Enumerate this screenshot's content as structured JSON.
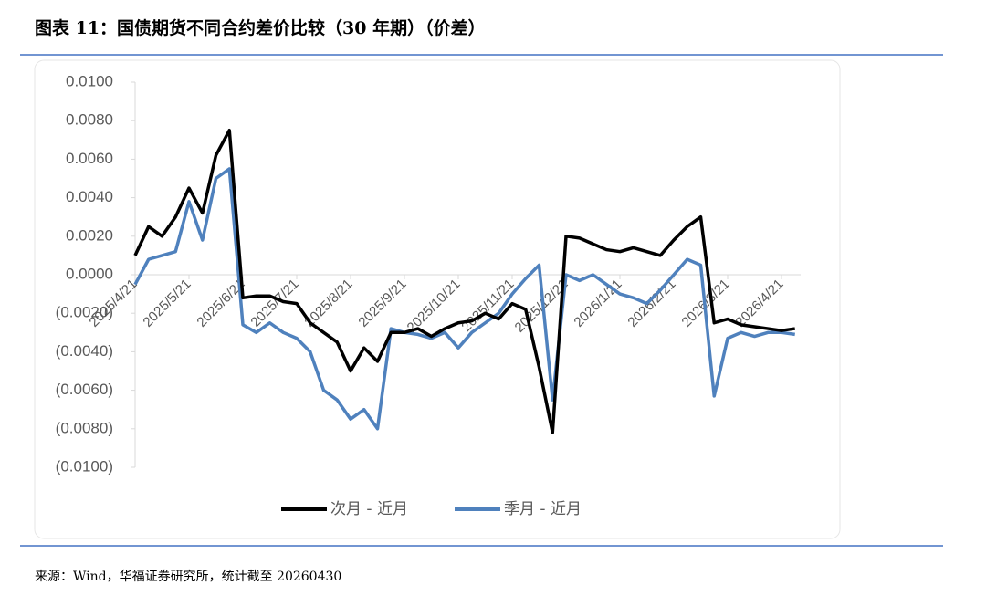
{
  "chart_data": {
    "type": "line",
    "title": "图表 11：国债期货不同合约差价比较（30 年期）（价差）",
    "source": "来源：Wind，华福证券研究所，统计截至 20260430",
    "categories": [
      "2025/4/21",
      null,
      null,
      null,
      "2025/5/21",
      null,
      null,
      null,
      "2025/6/21",
      null,
      null,
      null,
      "2025/7/21",
      null,
      null,
      null,
      "2025/8/21",
      null,
      null,
      null,
      "2025/9/21",
      null,
      null,
      null,
      "2025/10/21",
      null,
      null,
      null,
      "2025/11/21",
      null,
      null,
      null,
      "2025/12/21",
      null,
      null,
      null,
      "2026/1/21",
      null,
      null,
      null,
      "2026/2/21",
      null,
      null,
      null,
      "2026/3/21",
      null,
      null,
      null,
      "2026/4/21",
      null
    ],
    "series": [
      {
        "name": "次月 - 近月",
        "color": "#000000",
        "values": [
          0.001,
          0.0025,
          0.002,
          0.003,
          0.0045,
          0.0032,
          0.0062,
          0.0075,
          -0.0012,
          -0.0011,
          -0.0011,
          -0.0014,
          -0.0015,
          -0.0025,
          -0.003,
          -0.0035,
          -0.005,
          -0.0038,
          -0.0045,
          -0.003,
          -0.003,
          -0.0028,
          -0.0032,
          -0.0028,
          -0.0025,
          -0.0024,
          -0.002,
          -0.0023,
          -0.0015,
          -0.0018,
          -0.0048,
          -0.0082,
          0.002,
          0.0019,
          0.0016,
          0.0013,
          0.0012,
          0.0014,
          0.0012,
          0.001,
          0.0018,
          0.0025,
          0.003,
          -0.0025,
          -0.0023,
          -0.0026,
          -0.0027,
          -0.0028,
          -0.0029,
          -0.0028
        ]
      },
      {
        "name": "季月 - 近月",
        "color": "#4f81bd",
        "values": [
          -0.0005,
          0.0008,
          0.001,
          0.0012,
          0.0038,
          0.0018,
          0.005,
          0.0055,
          -0.0026,
          -0.003,
          -0.0025,
          -0.003,
          -0.0033,
          -0.004,
          -0.006,
          -0.0065,
          -0.0075,
          -0.007,
          -0.008,
          -0.0028,
          -0.003,
          -0.0031,
          -0.0033,
          -0.003,
          -0.0038,
          -0.003,
          -0.0025,
          -0.002,
          -0.001,
          -0.0002,
          0.0005,
          -0.0065,
          0.0,
          -0.0003,
          0.0,
          -0.0005,
          -0.001,
          -0.0012,
          -0.0015,
          -0.0008,
          0.0,
          0.0008,
          0.0005,
          -0.0063,
          -0.0033,
          -0.003,
          -0.0032,
          -0.003,
          -0.003,
          -0.0031
        ]
      }
    ],
    "ylim": [
      -0.01,
      0.01
    ],
    "yticks": [
      {
        "value": 0.01,
        "label": "0.0100"
      },
      {
        "value": 0.008,
        "label": "0.0080"
      },
      {
        "value": 0.006,
        "label": "0.0060"
      },
      {
        "value": 0.004,
        "label": "0.0040"
      },
      {
        "value": 0.002,
        "label": "0.0020"
      },
      {
        "value": 0,
        "label": "0.0000"
      },
      {
        "value": -0.002,
        "label": "(0.0020)"
      },
      {
        "value": -0.004,
        "label": "(0.0040)"
      },
      {
        "value": -0.006,
        "label": "(0.0060)"
      },
      {
        "value": -0.008,
        "label": "(0.0080)"
      },
      {
        "value": -0.01,
        "label": "(0.0100)"
      }
    ],
    "legend": "bottom"
  }
}
